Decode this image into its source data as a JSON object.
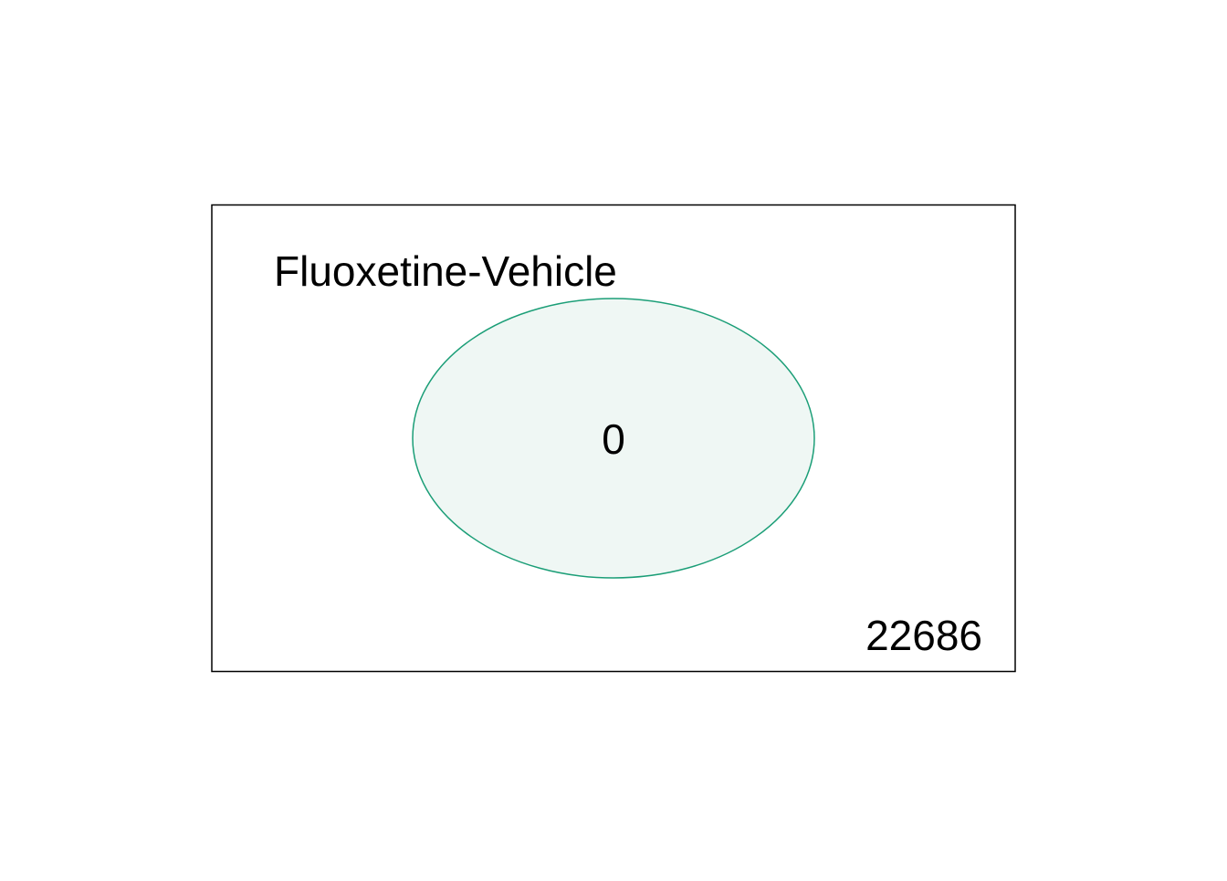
{
  "venn": {
    "set_label": "Fluoxetine-Vehicle",
    "inside_count": "0",
    "outside_count": "22686",
    "circle_stroke_color": "#1b9e77",
    "circle_fill_color": "#eff7f4",
    "frame_color": "#000000"
  }
}
